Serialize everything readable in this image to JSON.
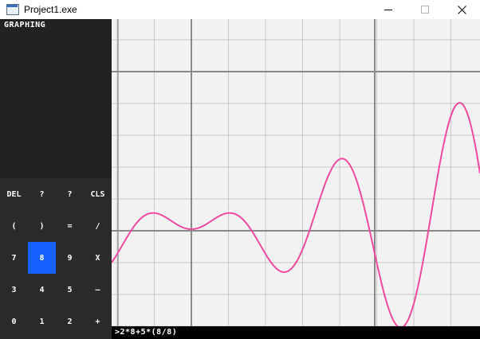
{
  "window": {
    "title": "Project1.exe"
  },
  "sidebar": {
    "mode_label": "GRAPHING"
  },
  "keypad": {
    "rows": [
      [
        "DEL",
        "?",
        "?",
        "CLS"
      ],
      [
        "(",
        ")",
        "=",
        "/"
      ],
      [
        "7",
        "8",
        "9",
        "X"
      ],
      [
        "3",
        "4",
        "5",
        "–"
      ],
      [
        "0",
        "1",
        "2",
        "+"
      ]
    ],
    "active_key": "8",
    "active_color": "#1561ff"
  },
  "command": {
    "text": ">2*8+5*(8/8)"
  },
  "graph": {
    "curve_color": "#f04aa0",
    "major_grid_color": "#8a8a8a",
    "minor_grid_color": "#c8c8c8",
    "background_color": "#f2f2f2"
  }
}
